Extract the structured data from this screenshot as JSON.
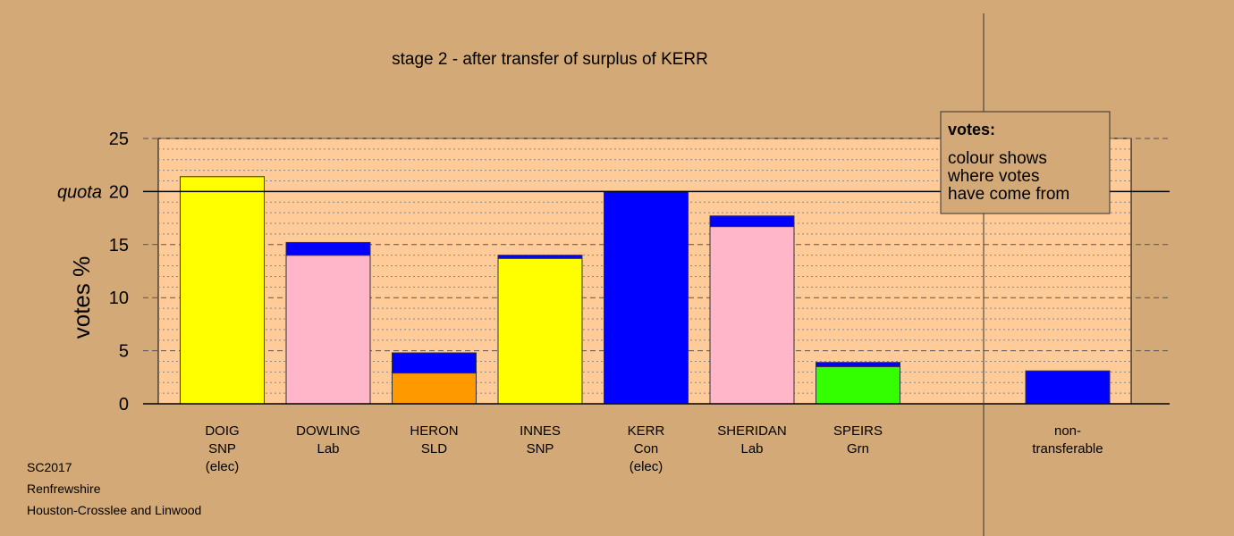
{
  "chart_data": {
    "type": "bar",
    "stacked": true,
    "title": "stage 2 - after transfer of surplus of KERR",
    "ylabel": "votes %",
    "ylim": [
      0,
      25
    ],
    "yticks": [
      "0",
      "5",
      "10",
      "15",
      "20",
      "25"
    ],
    "quota_label": "quota",
    "quota": 20,
    "grid": "dotted horizontal lines every 1, dashed every 5",
    "candidates": [
      {
        "name": "DOIG",
        "party": "SNP",
        "note": "(elec)",
        "segments": [
          {
            "value": 21.4,
            "color": "#FFFF00"
          }
        ]
      },
      {
        "name": "DOWLING",
        "party": "Lab",
        "note": "",
        "segments": [
          {
            "value": 14.0,
            "color": "#FFB6C8"
          },
          {
            "value": 1.2,
            "color": "#0000FF"
          }
        ]
      },
      {
        "name": "HERON",
        "party": "SLD",
        "note": "",
        "segments": [
          {
            "value": 2.9,
            "color": "#FF9900"
          },
          {
            "value": 1.9,
            "color": "#0000FF"
          }
        ]
      },
      {
        "name": "INNES",
        "party": "SNP",
        "note": "",
        "segments": [
          {
            "value": 13.7,
            "color": "#FFFF00"
          },
          {
            "value": 0.3,
            "color": "#0000FF"
          }
        ]
      },
      {
        "name": "KERR",
        "party": "Con",
        "note": "(elec)",
        "segments": [
          {
            "value": 20.0,
            "color": "#0000FF"
          }
        ]
      },
      {
        "name": "SHERIDAN",
        "party": "Lab",
        "note": "",
        "segments": [
          {
            "value": 16.7,
            "color": "#FFB6C8"
          },
          {
            "value": 1.0,
            "color": "#0000FF"
          }
        ]
      },
      {
        "name": "SPEIRS",
        "party": "Grn",
        "note": "",
        "segments": [
          {
            "value": 3.5,
            "color": "#33FF00"
          },
          {
            "value": 0.4,
            "color": "#0000FF"
          }
        ]
      }
    ],
    "nontransferable": {
      "line1": "non-",
      "line2": "transferable",
      "segments": [
        {
          "value": 3.1,
          "color": "#0000FF"
        }
      ]
    },
    "legend": {
      "title": "votes:",
      "lines": [
        "colour shows",
        "where votes",
        "have come from"
      ],
      "placement": "top-right"
    }
  },
  "footer": {
    "line1": "SC2017",
    "line2": "Renfrewshire",
    "line3": "Houston-Crosslee and Linwood"
  },
  "colors": {
    "background": "#D2A977",
    "plot_background": "#FFCC99",
    "ink": "#000000"
  }
}
